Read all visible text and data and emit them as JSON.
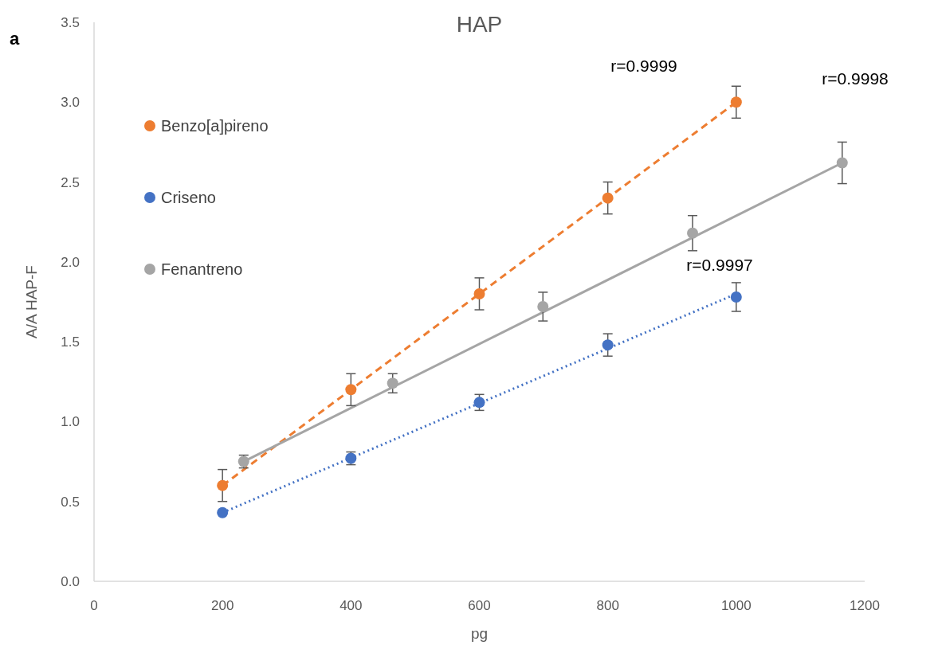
{
  "chart_data": {
    "type": "scatter",
    "title": "HAP",
    "xlabel": "pg",
    "ylabel": "A/A HAP-F",
    "xlim": [
      0,
      1200
    ],
    "xticks": [
      0,
      200,
      400,
      600,
      800,
      1000,
      1200
    ],
    "ylim": [
      0,
      3.5
    ],
    "yticks": [
      {
        "value": 0,
        "label": "0.0"
      },
      {
        "value": 0.5,
        "label": "0.5"
      },
      {
        "value": 1,
        "label": "1.0"
      },
      {
        "value": 1.5,
        "label": "1.5"
      },
      {
        "value": 2,
        "label": "2.0"
      },
      {
        "value": 2.5,
        "label": "2.5"
      },
      {
        "value": 3,
        "label": "3.0"
      },
      {
        "value": 3.5,
        "label": "3.5"
      }
    ],
    "grid": false,
    "legend": "top left",
    "marker": "circle",
    "series": [
      {
        "name": "Benzo[a]pireno",
        "color": "#ed7d31",
        "x": [
          200,
          400,
          600,
          800,
          1000
        ],
        "values": [
          0.6,
          1.2,
          1.8,
          2.4,
          3.0
        ],
        "errors": [
          0.1,
          0.1,
          0.1,
          0.1,
          0.1
        ]
      },
      {
        "name": "Criseno",
        "color": "#4472c4",
        "x": [
          200,
          400,
          600,
          800,
          1000
        ],
        "values": [
          0.43,
          0.77,
          1.12,
          1.48,
          1.78
        ],
        "errors": [
          null,
          0.04,
          0.05,
          0.07,
          0.09
        ]
      },
      {
        "name": "Fenantreno",
        "color": "#a5a5a5",
        "x": [
          233,
          465,
          699,
          932,
          1165
        ],
        "values": [
          0.75,
          1.24,
          1.72,
          2.18,
          2.62
        ],
        "errors": [
          0.04,
          0.06,
          0.09,
          0.11,
          0.13
        ]
      },
      {
        "type": "line",
        "color": "#ed7d31",
        "line_style": "dashed",
        "marker": "none",
        "x": [
          200,
          1000
        ],
        "values": [
          0.6,
          3.0
        ]
      },
      {
        "type": "line",
        "color": "#4472c4",
        "line_style": "dotted",
        "marker": "none",
        "x": [
          200,
          1000
        ],
        "values": [
          0.43,
          1.8
        ]
      },
      {
        "type": "line",
        "color": "#a5a5a5",
        "line_style": "solid",
        "marker": "none",
        "x": [
          233,
          1165
        ],
        "values": [
          0.75,
          2.62
        ]
      }
    ],
    "annotations": [
      "a",
      "r=0.9999",
      "r=0.9998",
      "r=0.9997"
    ]
  }
}
